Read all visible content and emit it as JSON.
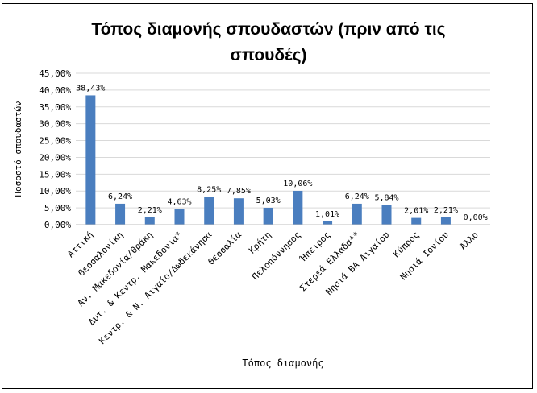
{
  "chart_data": {
    "type": "bar",
    "title": "Τόπος διαμονής σπουδαστών (πριν από τις σπουδές)",
    "xlabel": "Τόπος διαμονής",
    "ylabel": "Ποσοστό σπουδαστών",
    "categories": [
      "Αττική",
      "Θεσσαλονίκη",
      "Αν. Μακεδονία/Θράκη",
      "Δυτ. & Κεντρ. Μακεδονία*",
      "Κεντρ. & Ν. Αιγαίο/Δωδεκάνησα",
      "Θεσσαλία",
      "Κρήτη",
      "Πελοπόννησος",
      "Ήπειρος",
      "Στερεά Ελλάδα**",
      "Νησιά ΒΑ Αιγαίου",
      "Κύπρος",
      "Νησιά Ιονίου",
      "Άλλο"
    ],
    "values": [
      38.43,
      6.24,
      2.21,
      4.63,
      8.25,
      7.85,
      5.03,
      10.06,
      1.01,
      6.24,
      5.84,
      2.01,
      2.21,
      0.0
    ],
    "value_labels": [
      "38,43%",
      "6,24%",
      "2,21%",
      "4,63%",
      "8,25%",
      "7,85%",
      "5,03%",
      "10,06%",
      "1,01%",
      "6,24%",
      "5,84%",
      "2,01%",
      "2,21%",
      "0,00%"
    ],
    "ylim": [
      0,
      45
    ],
    "yticks": [
      0,
      5,
      10,
      15,
      20,
      25,
      30,
      35,
      40,
      45
    ],
    "ytick_labels": [
      "0,00%",
      "5,00%",
      "10,00%",
      "15,00%",
      "20,00%",
      "25,00%",
      "30,00%",
      "35,00%",
      "40,00%",
      "45,00%"
    ],
    "grid": true,
    "legend": "none",
    "bar_color": "#4a7ebf",
    "grid_color": "#d9d9d9"
  }
}
